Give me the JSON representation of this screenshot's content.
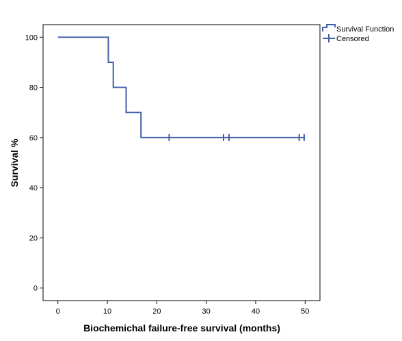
{
  "chart_data": {
    "type": "line",
    "title": "",
    "xlabel": "Biochemichal failure-free survival (months)",
    "ylabel": "Survival %",
    "xlim": [
      -3,
      53
    ],
    "ylim": [
      -5,
      105
    ],
    "x_ticks": [
      0,
      10,
      20,
      30,
      40,
      50
    ],
    "y_ticks": [
      0,
      20,
      40,
      60,
      80,
      100
    ],
    "grid": false,
    "legend_position": "top-right-outside",
    "line_color": "#3f5fa8",
    "series": [
      {
        "name": "Survival Function",
        "step": true,
        "x": [
          0,
          10.2,
          11.2,
          13.8,
          16.8,
          50
        ],
        "y": [
          100,
          90,
          80,
          70,
          60,
          60
        ]
      },
      {
        "name": "Censored",
        "marker": "+",
        "x": [
          22.5,
          33.5,
          34.6,
          48.8,
          49.8
        ],
        "y": [
          60,
          60,
          60,
          60,
          60
        ]
      }
    ]
  }
}
